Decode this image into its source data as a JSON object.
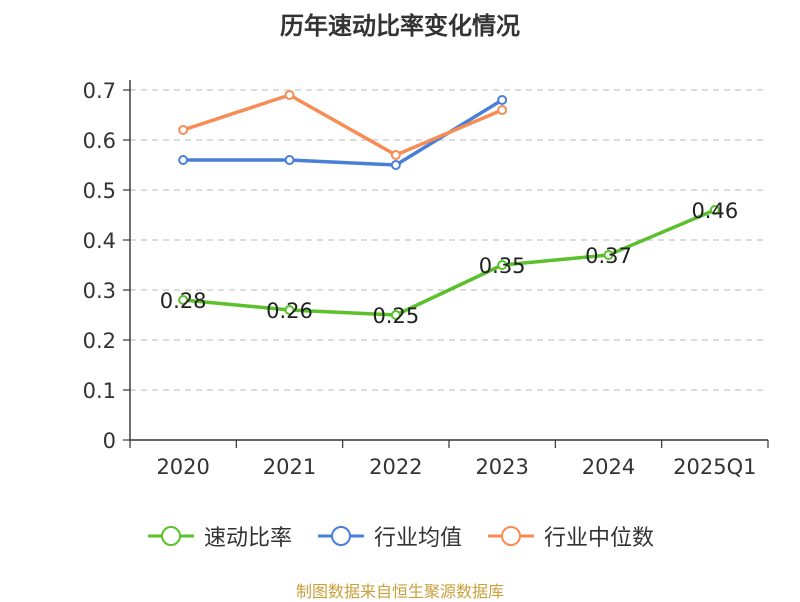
{
  "source_text": "制图数据来自恒生聚源数据库",
  "chart_data": {
    "type": "line",
    "title": "历年速动比率变化情况",
    "categories": [
      "2020",
      "2021",
      "2022",
      "2023",
      "2024",
      "2025Q1"
    ],
    "y_ticks": [
      "0",
      "0.1",
      "0.2",
      "0.3",
      "0.4",
      "0.5",
      "0.6",
      "0.7"
    ],
    "ylim": [
      0,
      0.7
    ],
    "grid": true,
    "legend_position": "bottom",
    "series": [
      {
        "name": "速动比率",
        "color": "#5ac12c",
        "values": [
          0.28,
          0.26,
          0.25,
          0.35,
          0.37,
          0.46
        ],
        "labels": [
          "0.28",
          "0.26",
          "0.25",
          "0.35",
          "0.37",
          "0.46"
        ],
        "show_labels": true
      },
      {
        "name": "行业均值",
        "color": "#4a7fd8",
        "values": [
          0.56,
          0.56,
          0.55,
          0.68,
          null,
          null
        ],
        "show_labels": false
      },
      {
        "name": "行业中位数",
        "color": "#f78c55",
        "values": [
          0.62,
          0.69,
          0.57,
          0.66,
          null,
          null
        ],
        "show_labels": false
      }
    ]
  }
}
